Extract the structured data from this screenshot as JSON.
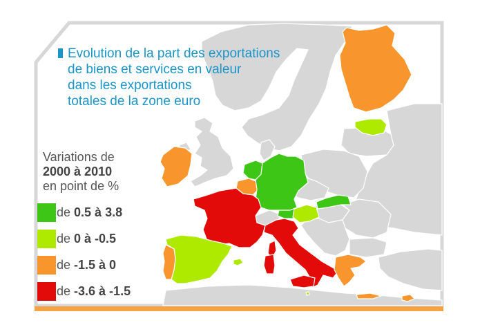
{
  "title": "Evolution de la part des exportations\nde biens et services en valeur\ndans les exportations\ntotales de la zone euro",
  "colors": {
    "title": "#1a95c9",
    "sea": "#ffffff",
    "non_euro_land": "#d7d7d7",
    "border": "#ffffff",
    "frame": "#d7d7d7",
    "bottom_bar": "#f5a242",
    "high": "#3ec617",
    "mid_high": "#aee900",
    "mid_low": "#f8962d",
    "low": "#e30a0a"
  },
  "legend": {
    "line1": "Variations de",
    "line2": "2000 à 2010",
    "line3": "en point de %",
    "items": [
      {
        "prefix": "de ",
        "range": "0.5 à 3.8",
        "color": "#3ec617"
      },
      {
        "prefix": "de ",
        "range": "0 à -0.5",
        "color": "#aee900"
      },
      {
        "prefix": "de ",
        "range": "-1.5 à 0",
        "color": "#f8962d"
      },
      {
        "prefix": "de ",
        "range": "-3.6 à -1.5",
        "color": "#e30a0a"
      }
    ]
  },
  "regions": [
    {
      "name": "Germany",
      "class": "0.5 à 3.8"
    },
    {
      "name": "Netherlands",
      "class": "0.5 à 3.8"
    },
    {
      "name": "Austria",
      "class": "0.5 à 3.8"
    },
    {
      "name": "Slovakia",
      "class": "0.5 à 3.8"
    },
    {
      "name": "Spain",
      "class": "0 à -0.5"
    },
    {
      "name": "Slovenia",
      "class": "0 à -0.5"
    },
    {
      "name": "Estonia",
      "class": "0 à -0.5"
    },
    {
      "name": "Malta",
      "class": "0 à -0.5"
    },
    {
      "name": "Finland",
      "class": "-1.5 à 0"
    },
    {
      "name": "Ireland",
      "class": "-1.5 à 0"
    },
    {
      "name": "Portugal",
      "class": "-1.5 à 0"
    },
    {
      "name": "Belgium",
      "class": "-1.5 à 0"
    },
    {
      "name": "Greece",
      "class": "-1.5 à 0"
    },
    {
      "name": "Cyprus",
      "class": "-1.5 à 0"
    },
    {
      "name": "France",
      "class": "-3.6 à -1.5"
    },
    {
      "name": "Italy",
      "class": "-3.6 à -1.5"
    }
  ]
}
